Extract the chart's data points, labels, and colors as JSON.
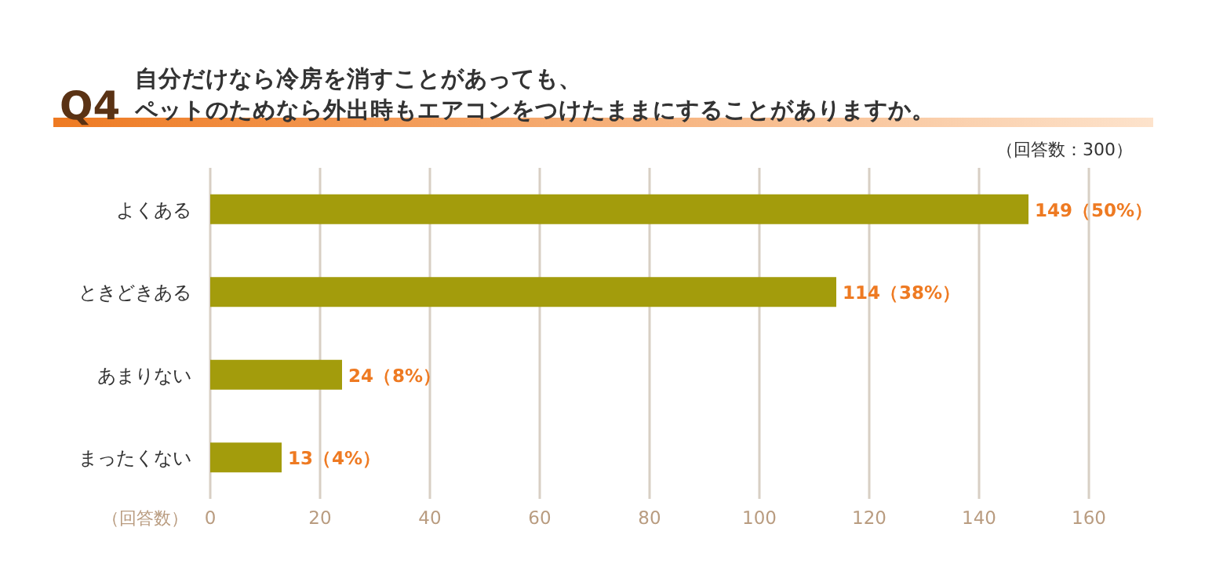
{
  "chart_data": {
    "type": "bar",
    "orientation": "horizontal",
    "title": "Q4",
    "subtitle": "自分だけなら冷房を消すことがあっても、ペットのためなら外出時もエアコンをつけたままにすることがありますか。",
    "xlabel": "（回答数）",
    "annotations": [
      "（回答数：300）"
    ],
    "categories": [
      "よくある",
      "ときどきある",
      "あまりない",
      "まったくない"
    ],
    "values": [
      149,
      114,
      24,
      13
    ],
    "color": "#a39c0c",
    "value_labels": [
      "149（50%）",
      "114（38%）",
      "24（8%）",
      "13（4%）"
    ],
    "xlim": [
      0,
      160
    ],
    "xticks": [
      0,
      20,
      40,
      60,
      80,
      100,
      120,
      140,
      160
    ],
    "grid": "x"
  }
}
